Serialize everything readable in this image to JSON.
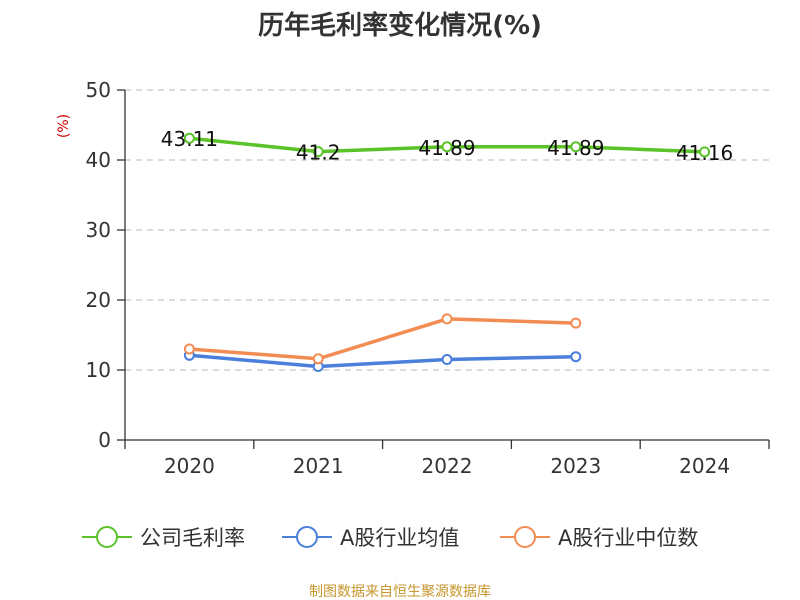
{
  "chart_data": {
    "type": "line",
    "title": "历年毛利率变化情况(%)",
    "unit": "(%)",
    "categories": [
      "2020",
      "2021",
      "2022",
      "2023",
      "2024"
    ],
    "ylim": [
      0,
      50
    ],
    "yticks": [
      0,
      10,
      20,
      30,
      40,
      50
    ],
    "grid": true,
    "legend_position": "bottom",
    "series": [
      {
        "name": "公司毛利率",
        "color": "#5bc22a",
        "values": [
          43.11,
          41.2,
          41.89,
          41.89,
          41.16
        ],
        "labels": [
          "43.11",
          "41.2",
          "41.89",
          "41.89",
          "41.16"
        ]
      },
      {
        "name": "A股行业均值",
        "color": "#4a7fdc",
        "values": [
          12.1,
          10.5,
          11.5,
          11.9,
          null
        ],
        "labels": []
      },
      {
        "name": "A股行业中位数",
        "color": "#f28c52",
        "values": [
          13.0,
          11.6,
          17.3,
          16.7,
          null
        ],
        "labels": []
      }
    ]
  },
  "source_text": "制图数据来自恒生聚源数据库"
}
